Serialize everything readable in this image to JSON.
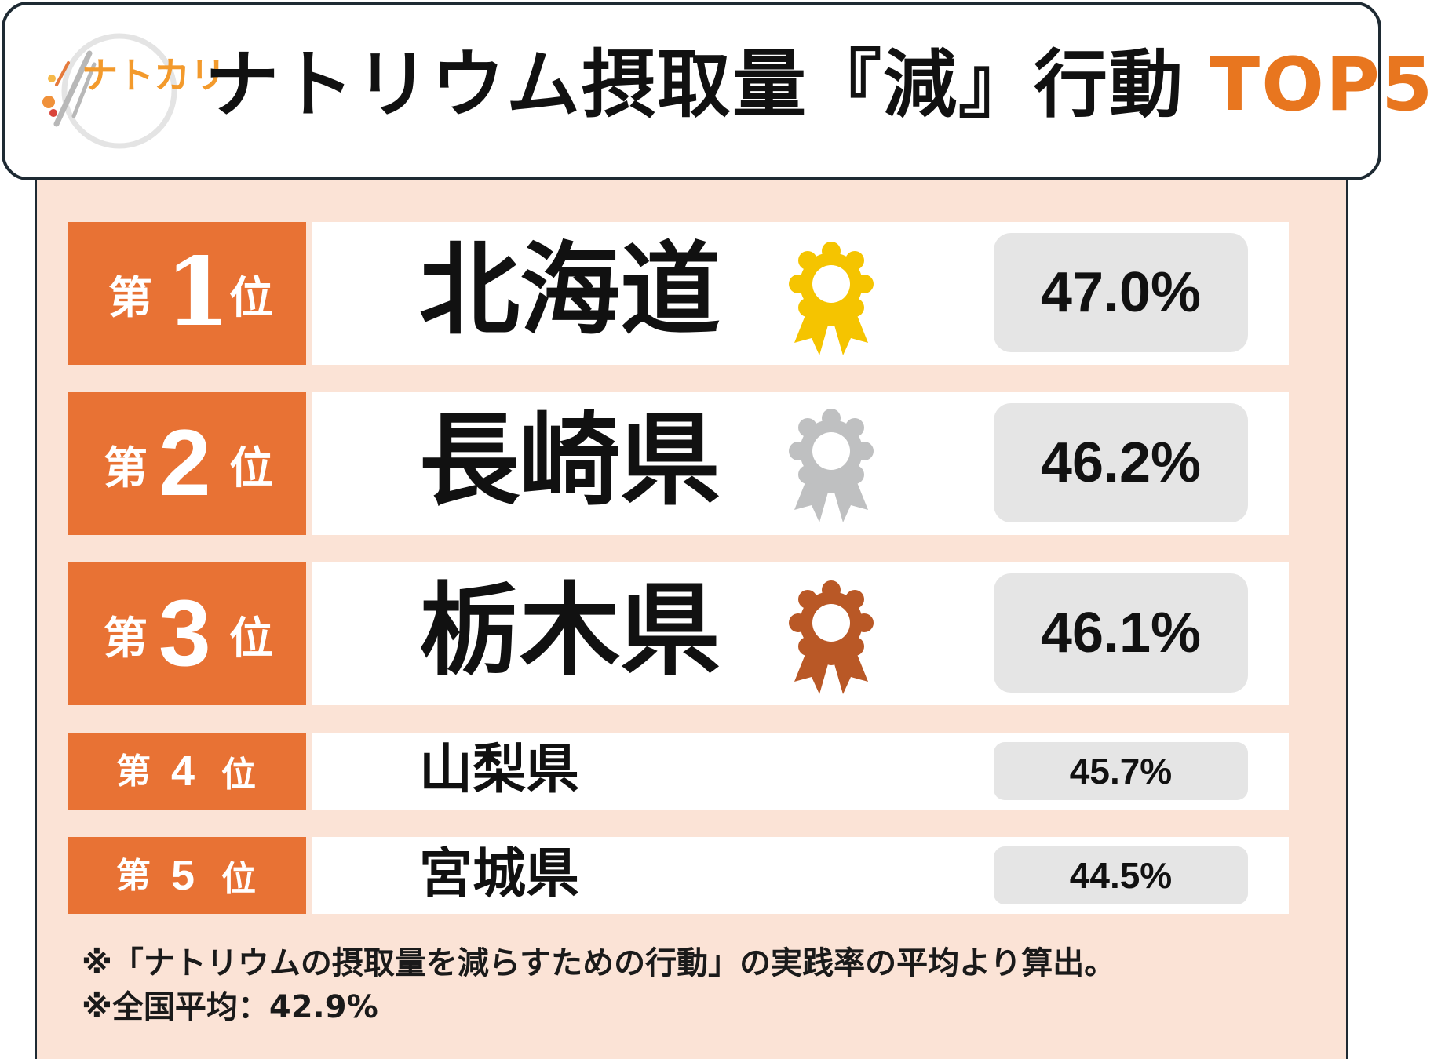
{
  "header": {
    "logo_text": "ナトカリ",
    "title": "ナトリウム摂取量『減』行動",
    "title_accent": "TOP5"
  },
  "colors": {
    "accent_orange": "#e87234",
    "title_accent": "#e8761f",
    "panel_bg": "#fbe3d6",
    "gold": "#f5c400",
    "silver": "#bfc0c1",
    "bronze": "#b95826"
  },
  "ranking": [
    {
      "prefix": "第",
      "rank": "1",
      "suffix": "位",
      "prefecture": "北海道",
      "percent": "47.0%",
      "medal": "gold-medal-icon"
    },
    {
      "prefix": "第",
      "rank": "2",
      "suffix": "位",
      "prefecture": "長崎県",
      "percent": "46.2%",
      "medal": "silver-medal-icon"
    },
    {
      "prefix": "第",
      "rank": "3",
      "suffix": "位",
      "prefecture": "栃木県",
      "percent": "46.1%",
      "medal": "bronze-medal-icon"
    },
    {
      "prefix": "第",
      "rank": "4",
      "suffix": "位",
      "prefecture": "山梨県",
      "percent": "45.7%"
    },
    {
      "prefix": "第",
      "rank": "5",
      "suffix": "位",
      "prefecture": "宮城県",
      "percent": "44.5%"
    }
  ],
  "notes": [
    "※「ナトリウムの摂取量を減らすための行動」の実践率の平均より算出。",
    "※全国平均：42.9%"
  ]
}
